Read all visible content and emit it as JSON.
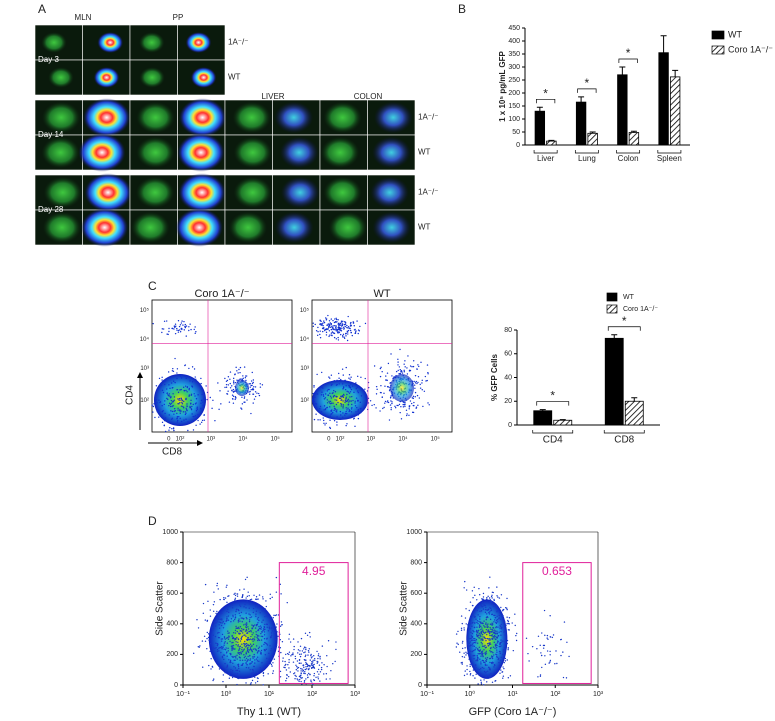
{
  "figure": {
    "panel_labels": [
      "A",
      "B",
      "C",
      "D"
    ],
    "panel_a": {
      "columns": [
        "MLN",
        "PP",
        "LIVER",
        "COLON"
      ],
      "days": [
        "Day 3",
        "Day 14",
        "Day 28"
      ],
      "row_labels": [
        "1A⁻/⁻",
        "WT",
        "1A⁻/⁻",
        "WT",
        "1A⁻/⁻",
        "WT"
      ]
    },
    "panel_c_flow": {
      "titles": [
        "Coro 1A⁻/⁻",
        "WT"
      ],
      "y_axis_label": "CD4",
      "x_axis_label": "CD8",
      "yticks": [
        "10⁵",
        "10⁴",
        "10³",
        "10²"
      ],
      "xticks": [
        "0",
        "10²",
        "10³",
        "10⁴",
        "10⁵"
      ]
    }
  },
  "chart_data": [
    {
      "type": "bar",
      "y_axis_label": "1 x 10⁵ pg/mL GFP",
      "categories": [
        "Liver",
        "Lung",
        "Colon",
        "Spleen"
      ],
      "series": [
        {
          "name": "WT",
          "color": "#000000",
          "fill_style": "solid",
          "values": [
            130,
            165,
            270,
            355
          ],
          "errors": [
            15,
            20,
            30,
            65
          ]
        },
        {
          "name": "Coro 1A⁻/⁻",
          "color": "#000000",
          "fill_style": "hatched",
          "values": [
            15,
            45,
            48,
            262
          ],
          "errors": [
            3,
            5,
            5,
            25
          ]
        }
      ],
      "annotations": [
        "*",
        "*",
        "*"
      ],
      "ylim": [
        0,
        450
      ],
      "yticks": [
        0,
        50,
        100,
        150,
        200,
        250,
        300,
        350,
        400,
        450
      ],
      "legend": "right"
    },
    {
      "type": "bar",
      "y_axis_label": "% GFP Cells",
      "categories": [
        "CD4",
        "CD8"
      ],
      "series": [
        {
          "name": "WT",
          "color": "#000000",
          "fill_style": "solid",
          "values": [
            12,
            73
          ],
          "errors": [
            1,
            3
          ]
        },
        {
          "name": "Coro 1A⁻/⁻",
          "color": "#000000",
          "fill_style": "hatched",
          "values": [
            4,
            20
          ],
          "errors": [
            0.5,
            3
          ]
        }
      ],
      "annotations": [
        "*",
        "*"
      ],
      "ylim": [
        0,
        80
      ],
      "yticks": [
        0,
        20,
        40,
        60,
        80
      ],
      "legend": "top"
    },
    {
      "type": "flow",
      "y_axis_label": "Side Scatter",
      "x_axis_label": "Thy 1.1 (WT)",
      "gate_percent": 4.95,
      "gate_color": "#e0209a",
      "log_x": true,
      "xlim": [
        0.1,
        1000
      ],
      "xticks": [
        {
          "value": 0.1,
          "label": "10⁻¹"
        },
        {
          "value": 1,
          "label": "10⁰"
        },
        {
          "value": 10,
          "label": "10¹"
        },
        {
          "value": 100,
          "label": "10²"
        },
        {
          "value": 1000,
          "label": "10³"
        }
      ],
      "ylim": [
        0,
        1000
      ],
      "yticks": [
        0,
        200,
        400,
        600,
        800,
        1000
      ]
    },
    {
      "type": "flow",
      "y_axis_label": "Side Scatter",
      "x_axis_label": "GFP (Coro 1A⁻/⁻)",
      "gate_percent": 0.653,
      "gate_color": "#e0209a",
      "log_x": true,
      "xlim": [
        0.1,
        1000
      ],
      "xticks": [
        {
          "value": 0.1,
          "label": "10⁻¹"
        },
        {
          "value": 1,
          "label": "10⁰"
        },
        {
          "value": 10,
          "label": "10¹"
        },
        {
          "value": 100,
          "label": "10²"
        },
        {
          "value": 1000,
          "label": "10³"
        }
      ],
      "ylim": [
        0,
        1000
      ],
      "yticks": [
        0,
        200,
        400,
        600,
        800,
        1000
      ]
    }
  ]
}
